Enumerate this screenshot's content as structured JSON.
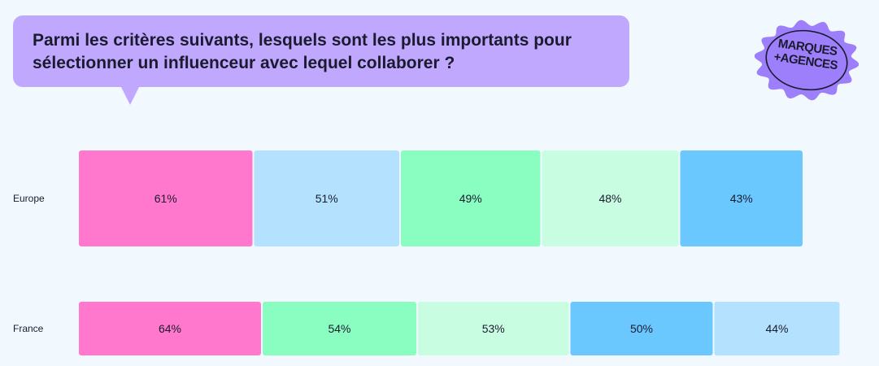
{
  "question": "Parmi les critères suivants, lesquels sont les plus importants pour sélectionner un influenceur avec lequel collaborer ?",
  "badge": {
    "line1": "MARQUES",
    "line2": "+AGENCES"
  },
  "colors": {
    "pink": "#ff78cd",
    "light_blue": "#b4e2fe",
    "green": "#89fec0",
    "mint": "#c8fde2",
    "blue": "#6ac8fe",
    "purple": "#c0a8ff",
    "background": "#f1f8fe"
  },
  "chart_data": {
    "type": "bar",
    "orientation": "horizontal-stacked",
    "rows": [
      {
        "name": "Europe",
        "segments": [
          {
            "value": 61,
            "label": "61%",
            "color": "pink"
          },
          {
            "value": 51,
            "label": "51%",
            "color": "light_blue"
          },
          {
            "value": 49,
            "label": "49%",
            "color": "green"
          },
          {
            "value": 48,
            "label": "48%",
            "color": "mint"
          },
          {
            "value": 43,
            "label": "43%",
            "color": "blue"
          }
        ]
      },
      {
        "name": "France",
        "segments": [
          {
            "value": 64,
            "label": "64%",
            "color": "pink"
          },
          {
            "value": 54,
            "label": "54%",
            "color": "green"
          },
          {
            "value": 53,
            "label": "53%",
            "color": "mint"
          },
          {
            "value": 50,
            "label": "50%",
            "color": "blue"
          },
          {
            "value": 44,
            "label": "44%",
            "color": "light_blue"
          }
        ]
      }
    ]
  }
}
